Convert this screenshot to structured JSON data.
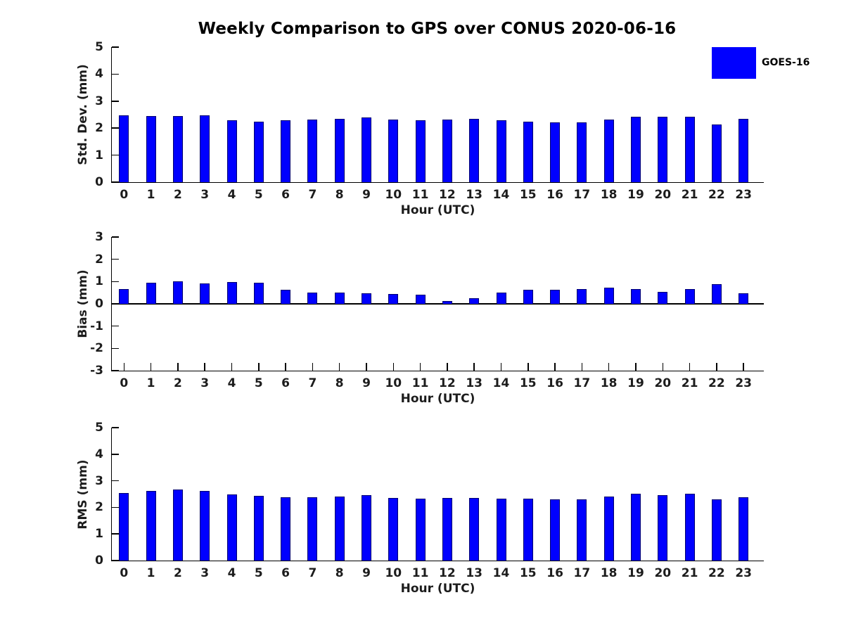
{
  "title": "Weekly Comparison to GPS over CONUS 2020-06-16",
  "legend": {
    "label": "GOES-16",
    "swatch_color": "#0000ff",
    "position": "top-right-outside"
  },
  "colors": {
    "bar_fill": "#0000ff",
    "bar_edge": "#000070",
    "axis": "#000000",
    "tick_label": "#1c1c1c",
    "title": "#000000"
  },
  "chart_data": [
    {
      "type": "bar",
      "panel": "std_dev",
      "ylabel": "Std. Dev. (mm)",
      "xlabel": "Hour (UTC)",
      "ylim": [
        0,
        5
      ],
      "yticks": [
        0,
        1,
        2,
        3,
        4,
        5
      ],
      "grid": false,
      "categories": [
        "0",
        "1",
        "2",
        "3",
        "4",
        "5",
        "6",
        "7",
        "8",
        "9",
        "10",
        "11",
        "12",
        "13",
        "14",
        "15",
        "16",
        "17",
        "18",
        "19",
        "20",
        "21",
        "22",
        "23"
      ],
      "series": [
        {
          "name": "GOES-16",
          "values": [
            2.47,
            2.45,
            2.45,
            2.48,
            2.28,
            2.25,
            2.28,
            2.32,
            2.35,
            2.4,
            2.31,
            2.28,
            2.33,
            2.34,
            2.29,
            2.24,
            2.21,
            2.22,
            2.32,
            2.41,
            2.42,
            2.41,
            2.14,
            2.34
          ]
        }
      ]
    },
    {
      "type": "bar",
      "panel": "bias",
      "ylabel": "Bias (mm)",
      "xlabel": "Hour (UTC)",
      "ylim": [
        -3,
        3
      ],
      "yticks": [
        -3,
        -2,
        -1,
        0,
        1,
        2,
        3
      ],
      "grid": false,
      "categories": [
        "0",
        "1",
        "2",
        "3",
        "4",
        "5",
        "6",
        "7",
        "8",
        "9",
        "10",
        "11",
        "12",
        "13",
        "14",
        "15",
        "16",
        "17",
        "18",
        "19",
        "20",
        "21",
        "22",
        "23"
      ],
      "series": [
        {
          "name": "GOES-16",
          "values": [
            0.65,
            0.95,
            1.02,
            0.93,
            0.98,
            0.95,
            0.64,
            0.49,
            0.5,
            0.46,
            0.44,
            0.4,
            0.12,
            0.24,
            0.51,
            0.63,
            0.64,
            0.65,
            0.72,
            0.66,
            0.55,
            0.66,
            0.87,
            0.48
          ]
        }
      ]
    },
    {
      "type": "bar",
      "panel": "rms",
      "ylabel": "RMS (mm)",
      "xlabel": "Hour (UTC)",
      "ylim": [
        0,
        5
      ],
      "yticks": [
        0,
        1,
        2,
        3,
        4,
        5
      ],
      "grid": false,
      "categories": [
        "0",
        "1",
        "2",
        "3",
        "4",
        "5",
        "6",
        "7",
        "8",
        "9",
        "10",
        "11",
        "12",
        "13",
        "14",
        "15",
        "16",
        "17",
        "18",
        "19",
        "20",
        "21",
        "22",
        "23"
      ],
      "series": [
        {
          "name": "GOES-16",
          "values": [
            2.54,
            2.63,
            2.66,
            2.63,
            2.5,
            2.44,
            2.39,
            2.39,
            2.41,
            2.46,
            2.36,
            2.33,
            2.36,
            2.36,
            2.33,
            2.33,
            2.3,
            2.31,
            2.42,
            2.51,
            2.47,
            2.51,
            2.3,
            2.38
          ]
        }
      ]
    }
  ]
}
